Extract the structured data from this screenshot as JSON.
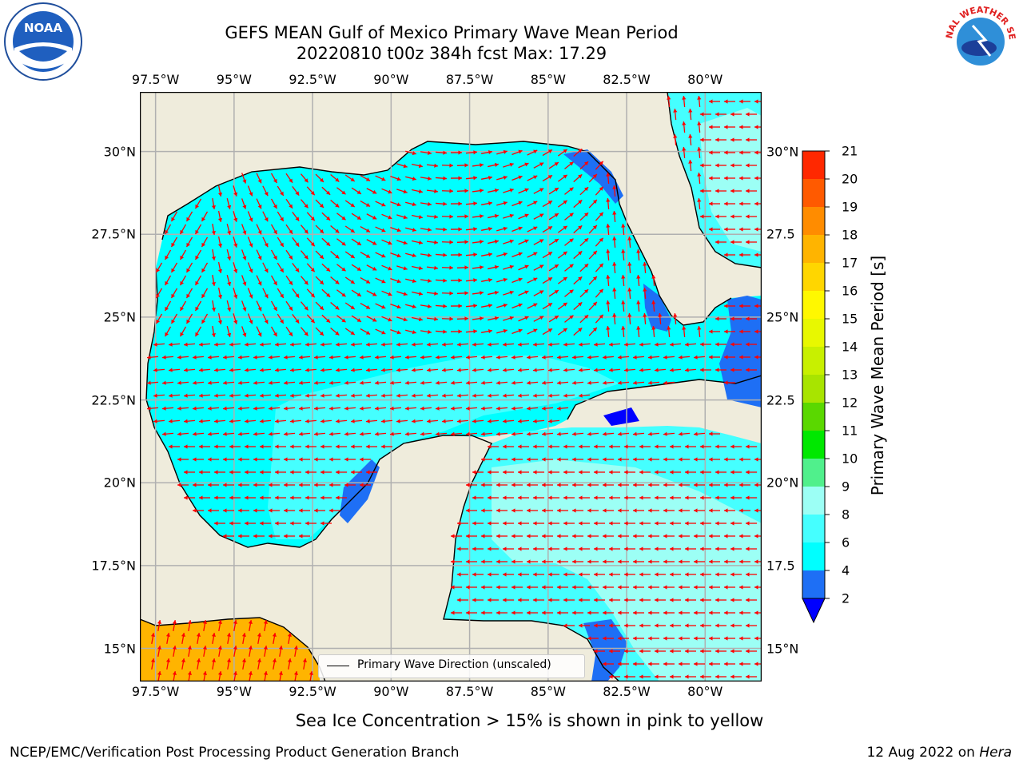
{
  "title": {
    "line1": "GEFS MEAN Gulf of Mexico Primary Wave Mean Period",
    "line2": "20220810 t00z 384h fcst   Max: 17.29"
  },
  "logos": {
    "noaa": "NOAA",
    "nws": "NATIONAL WEATHER SERVICE"
  },
  "map": {
    "lon_ticks": [
      "97.5°W",
      "95°W",
      "92.5°W",
      "90°W",
      "87.5°W",
      "85°W",
      "82.5°W",
      "80°W"
    ],
    "lon_values": [
      -97.5,
      -95,
      -92.5,
      -90,
      -87.5,
      -85,
      -82.5,
      -80
    ],
    "lat_ticks_left": [
      "30°N",
      "27.5°N",
      "25°N",
      "22.5°N",
      "20°N",
      "17.5°N",
      "15°N"
    ],
    "lat_ticks_right": [
      "30°N",
      "27.5",
      "25°N",
      "22.5",
      "20°N",
      "17.5",
      "15°N"
    ],
    "lat_values": [
      30,
      27.5,
      25,
      22.5,
      20,
      17.5,
      15
    ],
    "extent": {
      "lon_min": -98,
      "lon_max": -78.2,
      "lat_min": 14,
      "lat_max": 31.8
    },
    "grid": true,
    "arrow_color": "#ff0000",
    "land_color": "#efecdc",
    "legend_label": "Primary Wave Direction (unscaled)"
  },
  "colorbar": {
    "title": "Primary Wave Mean Period [s]",
    "levels": [
      2,
      4,
      6,
      8,
      9,
      10,
      11,
      12,
      13,
      14,
      15,
      16,
      17,
      18,
      19,
      20,
      21
    ],
    "tick_labels": [
      "2",
      "4",
      "6",
      "8",
      "9",
      "10",
      "11",
      "12",
      "13",
      "14",
      "15",
      "16",
      "17",
      "18",
      "19",
      "20",
      "21"
    ],
    "colors": [
      "#1e6ff5",
      "#00ffff",
      "#45ffff",
      "#9cfff5",
      "#50f08c",
      "#00e800",
      "#5ad800",
      "#a8e400",
      "#c8f000",
      "#e8f800",
      "#fff800",
      "#ffd600",
      "#ffb400",
      "#ff8c00",
      "#ff5a00",
      "#ff2800"
    ],
    "under_color": "#0000ff"
  },
  "subtitle": "Sea Ice Concentration > 15% is shown in pink to yellow",
  "footer": {
    "left": "NCEP/EMC/Verification Post Processing Product Generation Branch",
    "right_date": "12 Aug 2022 on",
    "right_host": "Hera"
  }
}
